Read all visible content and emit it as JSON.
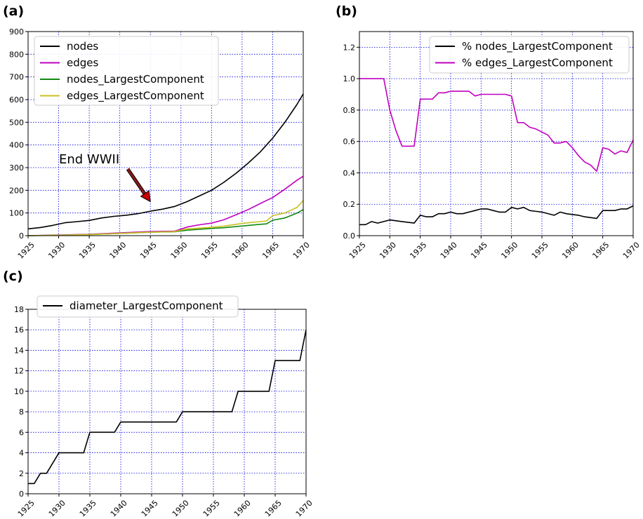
{
  "colors": {
    "grid": "#0000dd",
    "black": "#000000",
    "magenta": "#c000c0",
    "green": "#118811",
    "olive": "#c8c020",
    "arrow": "#cc0000"
  },
  "chart_data": [
    {
      "type": "line",
      "panel_label": "(a)",
      "xlim": [
        1925,
        1970
      ],
      "ylim": [
        0,
        900
      ],
      "xticks": [
        1925,
        1930,
        1935,
        1940,
        1945,
        1950,
        1955,
        1960,
        1965,
        1970
      ],
      "yticks": [
        0,
        100,
        200,
        300,
        400,
        500,
        600,
        700,
        800,
        900
      ],
      "grid": true,
      "legend_position": "top-left",
      "annotation": {
        "text": "End WWII",
        "x": 1945,
        "y": 150
      },
      "series": [
        {
          "name": "nodes",
          "color": "#000000",
          "x": [
            1925,
            1927,
            1929,
            1931,
            1933,
            1935,
            1937,
            1939,
            1941,
            1943,
            1945,
            1947,
            1949,
            1951,
            1953,
            1955,
            1957,
            1959,
            1961,
            1963,
            1965,
            1967,
            1969,
            1970
          ],
          "y": [
            30,
            36,
            45,
            57,
            62,
            67,
            78,
            85,
            90,
            97,
            108,
            117,
            129,
            150,
            175,
            200,
            235,
            275,
            320,
            370,
            430,
            500,
            580,
            625
          ]
        },
        {
          "name": "edges",
          "color": "#c000c0",
          "x": [
            1925,
            1930,
            1935,
            1940,
            1945,
            1949,
            1951,
            1953,
            1955,
            1957,
            1959,
            1961,
            1963,
            1965,
            1967,
            1969,
            1970
          ],
          "y": [
            0,
            3,
            6,
            12,
            18,
            20,
            38,
            48,
            55,
            70,
            92,
            115,
            142,
            168,
            205,
            245,
            262
          ]
        },
        {
          "name": "nodes_LargestComponent",
          "color": "#118811",
          "x": [
            1925,
            1930,
            1935,
            1940,
            1945,
            1949,
            1951,
            1953,
            1955,
            1957,
            1959,
            1961,
            1963,
            1964,
            1965,
            1967,
            1969,
            1970
          ],
          "y": [
            0,
            2,
            5,
            10,
            15,
            17,
            24,
            28,
            32,
            35,
            40,
            45,
            50,
            52,
            68,
            78,
            100,
            115
          ]
        },
        {
          "name": "edges_LargestComponent",
          "color": "#c8c020",
          "x": [
            1925,
            1930,
            1935,
            1940,
            1945,
            1949,
            1951,
            1953,
            1955,
            1957,
            1959,
            1961,
            1963,
            1964,
            1965,
            1967,
            1969,
            1970
          ],
          "y": [
            0,
            2,
            5,
            10,
            15,
            18,
            30,
            33,
            37,
            42,
            50,
            57,
            62,
            65,
            88,
            100,
            125,
            155
          ]
        }
      ]
    },
    {
      "type": "line",
      "panel_label": "(b)",
      "xlim": [
        1925,
        1970
      ],
      "ylim": [
        0,
        1.3
      ],
      "xticks": [
        1925,
        1930,
        1935,
        1940,
        1945,
        1950,
        1955,
        1960,
        1965,
        1970
      ],
      "yticks": [
        "0.0",
        "0.2",
        "0.4",
        "0.6",
        "0.8",
        "1.0",
        "1.2"
      ],
      "grid": true,
      "legend_position": "top-right",
      "series": [
        {
          "name": "% nodes_LargestComponent",
          "color": "#000000",
          "x": [
            1925,
            1926,
            1927,
            1928,
            1930,
            1932,
            1934,
            1935,
            1936,
            1937,
            1938,
            1939,
            1940,
            1941,
            1942,
            1943,
            1944,
            1945,
            1946,
            1947,
            1948,
            1949,
            1950,
            1951,
            1952,
            1953,
            1955,
            1957,
            1958,
            1959,
            1961,
            1962,
            1964,
            1965,
            1966,
            1967,
            1968,
            1969,
            1970
          ],
          "y": [
            0.07,
            0.07,
            0.09,
            0.08,
            0.1,
            0.09,
            0.08,
            0.13,
            0.12,
            0.12,
            0.14,
            0.14,
            0.15,
            0.14,
            0.14,
            0.15,
            0.16,
            0.17,
            0.17,
            0.16,
            0.15,
            0.15,
            0.18,
            0.17,
            0.18,
            0.16,
            0.15,
            0.13,
            0.15,
            0.14,
            0.13,
            0.12,
            0.11,
            0.16,
            0.16,
            0.16,
            0.17,
            0.17,
            0.19
          ]
        },
        {
          "name": "% edges_LargestComponent",
          "color": "#c000c0",
          "x": [
            1925,
            1926,
            1927,
            1928,
            1929,
            1930,
            1931,
            1932,
            1933,
            1934,
            1935,
            1936,
            1937,
            1938,
            1939,
            1940,
            1941,
            1942,
            1943,
            1944,
            1945,
            1946,
            1947,
            1948,
            1949,
            1950,
            1951,
            1952,
            1953,
            1954,
            1955,
            1956,
            1957,
            1958,
            1959,
            1960,
            1961,
            1962,
            1963,
            1964,
            1965,
            1966,
            1967,
            1968,
            1969,
            1970
          ],
          "y": [
            1.0,
            1.0,
            1.0,
            1.0,
            1.0,
            0.8,
            0.67,
            0.57,
            0.57,
            0.57,
            0.87,
            0.87,
            0.87,
            0.91,
            0.91,
            0.92,
            0.92,
            0.92,
            0.92,
            0.89,
            0.9,
            0.9,
            0.9,
            0.9,
            0.9,
            0.89,
            0.72,
            0.72,
            0.69,
            0.68,
            0.66,
            0.64,
            0.59,
            0.59,
            0.6,
            0.56,
            0.51,
            0.47,
            0.45,
            0.41,
            0.56,
            0.55,
            0.52,
            0.54,
            0.53,
            0.61
          ]
        }
      ]
    },
    {
      "type": "line",
      "panel_label": "(c)",
      "xlim": [
        1925,
        1970
      ],
      "ylim": [
        0,
        18
      ],
      "xticks": [
        1925,
        1930,
        1935,
        1940,
        1945,
        1950,
        1955,
        1960,
        1965,
        1970
      ],
      "yticks": [
        0,
        2,
        4,
        6,
        8,
        10,
        12,
        14,
        16,
        18
      ],
      "grid": true,
      "legend_position": "top-left",
      "series": [
        {
          "name": "diameter_LargestComponent",
          "color": "#000000",
          "x": [
            1925,
            1926,
            1927,
            1928,
            1930,
            1934,
            1935,
            1939,
            1940,
            1949,
            1950,
            1958,
            1959,
            1964,
            1965,
            1969,
            1970
          ],
          "y": [
            1,
            1,
            2,
            2,
            4,
            4,
            6,
            6,
            7,
            7,
            8,
            8,
            10,
            10,
            13,
            13,
            16
          ]
        }
      ]
    }
  ]
}
